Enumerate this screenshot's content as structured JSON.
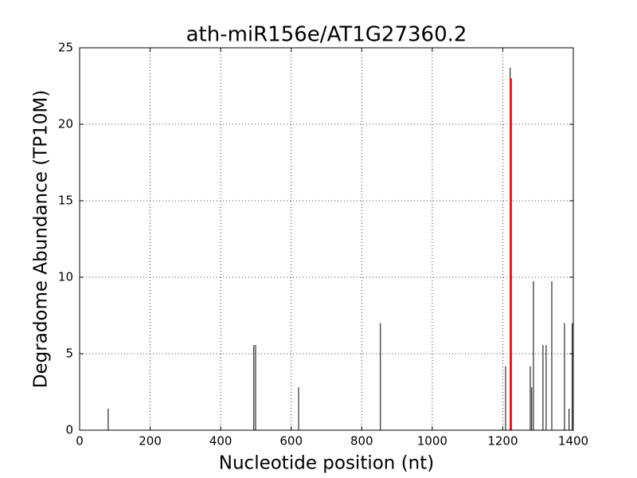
{
  "chart_data": {
    "type": "vlines",
    "title": "ath-miR156e/AT1G27360.2",
    "x_label": "Nucleotide position (nt)",
    "y_label": "Degradome Abundance (TP10M)",
    "x": [
      81,
      494,
      499,
      621,
      853,
      1208,
      1221,
      1278,
      1282,
      1287,
      1314,
      1323,
      1339,
      1375,
      1388,
      1397
    ],
    "values": [
      1.4,
      5.57,
      5.57,
      2.8,
      7.0,
      4.17,
      23.7,
      4.17,
      2.8,
      9.74,
      5.57,
      5.57,
      9.74,
      7.0,
      1.4,
      7.0
    ],
    "color": "#000000",
    "highlight": {
      "x": 1223,
      "value": 23.0,
      "color": "#ff0000"
    },
    "xlim": [
      0,
      1400
    ],
    "xticks": [
      0,
      200,
      400,
      600,
      800,
      1000,
      1200,
      1400
    ],
    "ylim": [
      0,
      25
    ],
    "yticks": [
      0,
      5,
      10,
      15,
      20,
      25
    ],
    "grid": true
  }
}
